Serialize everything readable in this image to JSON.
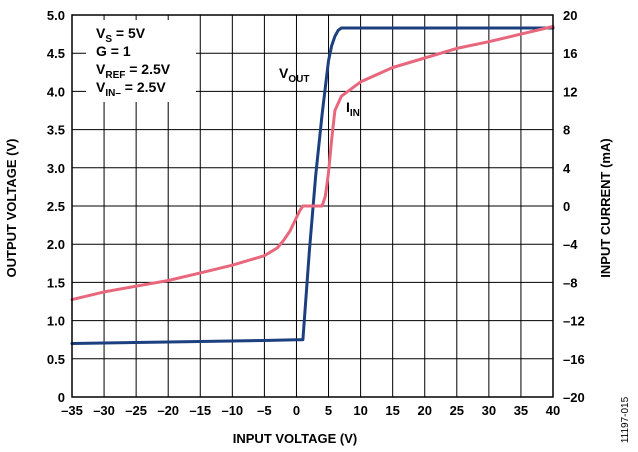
{
  "chart_data": {
    "type": "line",
    "xlabel": "INPUT VOLTAGE (V)",
    "ylabel_left": "OUTPUT VOLTAGE (V)",
    "ylabel_right": "INPUT CURRENT (mA)",
    "xlim": [
      -35,
      40
    ],
    "ylim_left": [
      0,
      5.0
    ],
    "ylim_right": [
      -20,
      20
    ],
    "x_ticks": [
      "–35",
      "–30",
      "–25",
      "–20",
      "–15",
      "–10",
      "–5",
      "0",
      "5",
      "10",
      "15",
      "20",
      "25",
      "30",
      "35",
      "40"
    ],
    "x_tick_values": [
      -35,
      -30,
      -25,
      -20,
      -15,
      -10,
      -5,
      0,
      5,
      10,
      15,
      20,
      25,
      30,
      35,
      40
    ],
    "y_left_ticks": [
      "0",
      "0.5",
      "1.0",
      "1.5",
      "2.0",
      "2.5",
      "3.0",
      "3.5",
      "4.0",
      "4.5",
      "5.0"
    ],
    "y_left_tick_values": [
      0,
      0.5,
      1.0,
      1.5,
      2.0,
      2.5,
      3.0,
      3.5,
      4.0,
      4.5,
      5.0
    ],
    "y_right_ticks": [
      "–20",
      "–16",
      "–12",
      "–8",
      "–4",
      "0",
      "4",
      "8",
      "12",
      "16",
      "20"
    ],
    "y_right_tick_values": [
      -20,
      -16,
      -12,
      -8,
      -4,
      0,
      4,
      8,
      12,
      16,
      20
    ],
    "grid": true,
    "conditions": [
      {
        "main": "V",
        "sub": "S",
        "rest": " = 5V"
      },
      {
        "main": "G = 1",
        "sub": "",
        "rest": ""
      },
      {
        "main": "V",
        "sub": "REF",
        "rest": " = 2.5V"
      },
      {
        "main": "V",
        "sub": "IN–",
        "rest": " = 2.5V"
      }
    ],
    "series": [
      {
        "name": "V",
        "name_sub": "OUT",
        "axis": "left",
        "color": "#1c3f7f",
        "x": [
          -35,
          -20,
          -5,
          0,
          1,
          2,
          3,
          4,
          4.5,
          5,
          5.5,
          6,
          6.5,
          7,
          8,
          10,
          20,
          30,
          40
        ],
        "y": [
          0.7,
          0.72,
          0.74,
          0.75,
          0.75,
          1.9,
          2.9,
          3.7,
          4.05,
          4.4,
          4.6,
          4.72,
          4.8,
          4.83,
          4.83,
          4.83,
          4.83,
          4.83,
          4.83
        ]
      },
      {
        "name": "I",
        "name_sub": "IN",
        "axis": "right",
        "color": "#e8677c",
        "x": [
          -35,
          -30,
          -25,
          -20,
          -15,
          -10,
          -5,
          -3,
          -2,
          -1,
          0,
          0.5,
          1,
          2,
          3,
          4,
          4.5,
          5,
          5.5,
          6,
          7,
          10,
          15,
          20,
          25,
          30,
          35,
          40
        ],
        "y": [
          -9.8,
          -9.0,
          -8.4,
          -7.8,
          -7.0,
          -6.2,
          -5.2,
          -4.4,
          -3.6,
          -2.6,
          -1.2,
          -0.5,
          0,
          0,
          0,
          0,
          1.0,
          3.5,
          7.0,
          10.0,
          11.5,
          13.0,
          14.5,
          15.5,
          16.5,
          17.2,
          18.0,
          18.8
        ]
      }
    ],
    "fig_id": "11197-015"
  }
}
